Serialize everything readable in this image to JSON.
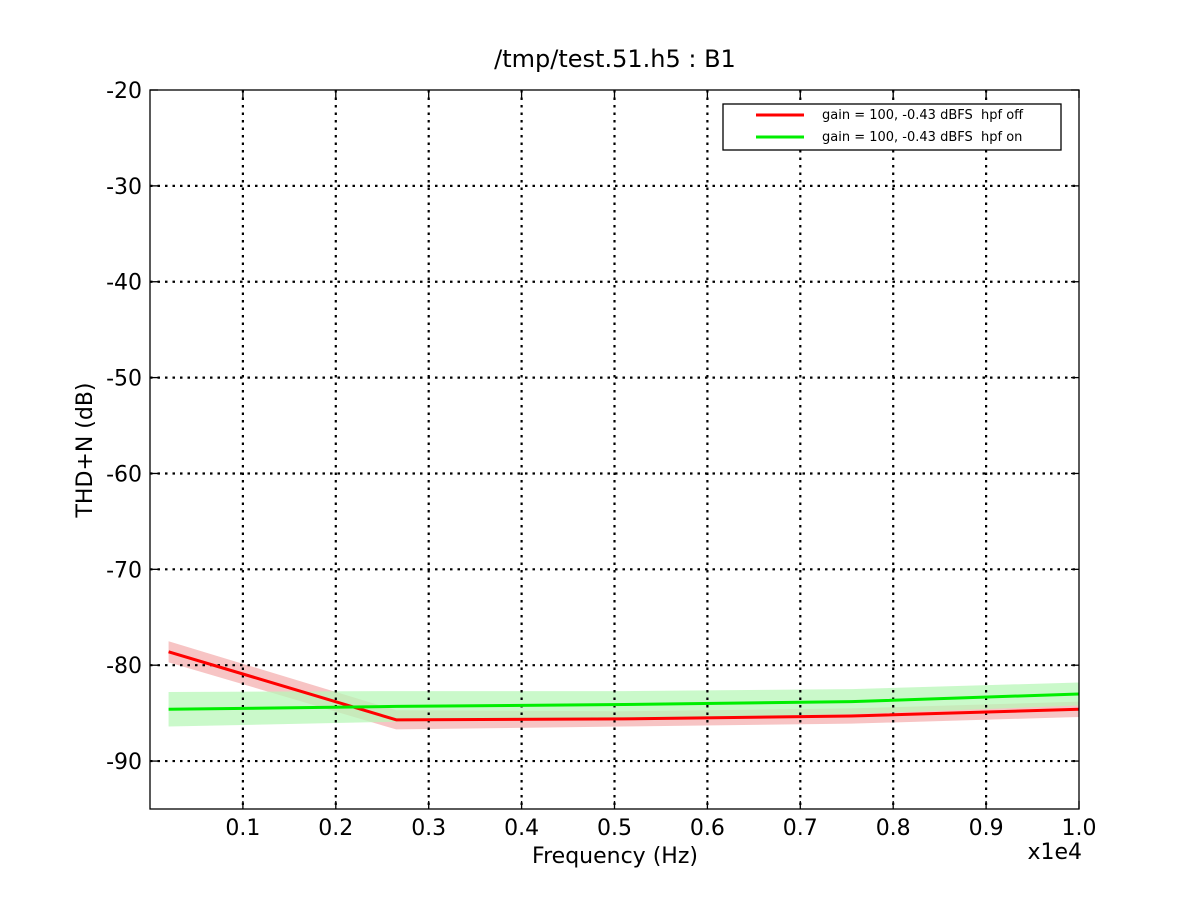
{
  "chart_data": {
    "type": "line",
    "title": "/tmp/test.51.h5 : B1",
    "xlabel": "Frequency (Hz)",
    "ylabel": "THD+N (dB)",
    "x_offset_label": "x1e4",
    "xlim": [
      0.0,
      1.0
    ],
    "ylim": [
      -95,
      -20
    ],
    "xticks": [
      0.1,
      0.2,
      0.3,
      0.4,
      0.5,
      0.6,
      0.7,
      0.8,
      0.9,
      1.0
    ],
    "xtick_labels": [
      "0.1",
      "0.2",
      "0.3",
      "0.4",
      "0.5",
      "0.6",
      "0.7",
      "0.8",
      "0.9",
      "1.0"
    ],
    "yticks": [
      -90,
      -80,
      -70,
      -60,
      -50,
      -40,
      -30,
      -20
    ],
    "ytick_labels": [
      "-90",
      "-80",
      "-70",
      "-60",
      "-50",
      "-40",
      "-30",
      "-20"
    ],
    "grid": true,
    "legend_position": "top-right",
    "series": [
      {
        "name": "gain = 100, -0.43 dBFS  hpf off",
        "color": "#ff0000",
        "band_color": "#f4b0b0",
        "x": [
          0.02,
          0.265,
          0.51,
          0.755,
          1.0
        ],
        "values": [
          -78.6,
          -85.7,
          -85.6,
          -85.3,
          -84.6
        ],
        "band": [
          1.1,
          1.0,
          0.8,
          0.8,
          0.8
        ]
      },
      {
        "name": "gain = 100, -0.43 dBFS  hpf on",
        "color": "#00ee00",
        "band_color": "#b8f7b8",
        "x": [
          0.02,
          0.265,
          0.51,
          0.755,
          1.0
        ],
        "values": [
          -84.6,
          -84.3,
          -84.1,
          -83.8,
          -83.0
        ],
        "band": [
          1.8,
          1.6,
          1.4,
          1.3,
          1.2
        ]
      }
    ]
  }
}
